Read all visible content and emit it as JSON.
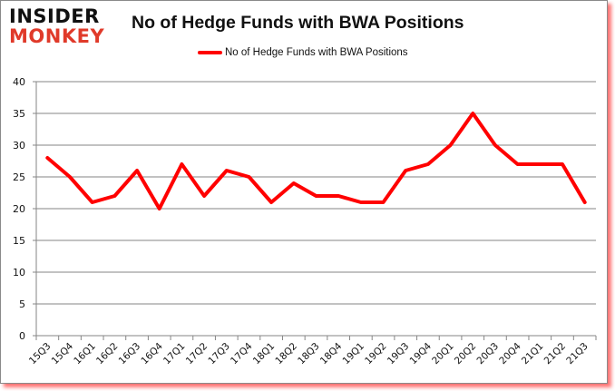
{
  "header": {
    "logo_line1": "INSIDER",
    "logo_line2": "MONKEY",
    "title": "No of Hedge Funds with BWA Positions"
  },
  "legend": {
    "label": "No of Hedge Funds with BWA Positions",
    "color": "#ff0000"
  },
  "chart_data": {
    "type": "line",
    "title": "No of Hedge Funds with BWA Positions",
    "xlabel": "",
    "ylabel": "",
    "ylim": [
      0,
      40
    ],
    "yticks": [
      0,
      5,
      10,
      15,
      20,
      25,
      30,
      35,
      40
    ],
    "grid": true,
    "legend_position": "top",
    "categories": [
      "15Q3",
      "15Q4",
      "16Q1",
      "16Q2",
      "16Q3",
      "16Q4",
      "17Q1",
      "17Q2",
      "17Q3",
      "17Q4",
      "18Q1",
      "18Q2",
      "18Q3",
      "18Q4",
      "19Q1",
      "19Q2",
      "19Q3",
      "19Q4",
      "20Q1",
      "20Q2",
      "20Q3",
      "20Q4",
      "21Q1",
      "21Q2",
      "21Q3"
    ],
    "series": [
      {
        "name": "No of Hedge Funds with BWA Positions",
        "color": "#ff0000",
        "values": [
          28,
          25,
          21,
          22,
          26,
          20,
          27,
          22,
          26,
          25,
          21,
          24,
          22,
          22,
          21,
          21,
          26,
          27,
          30,
          35,
          30,
          27,
          27,
          27,
          21
        ]
      }
    ]
  }
}
